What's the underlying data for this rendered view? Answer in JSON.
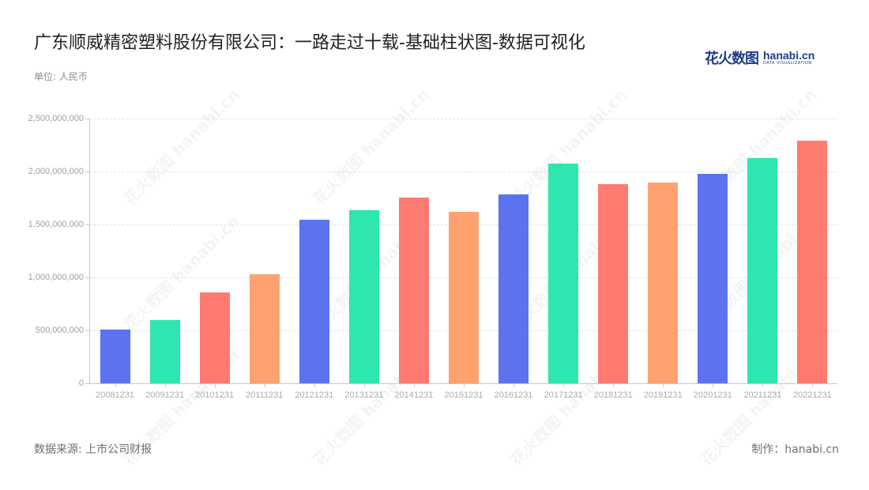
{
  "header": {
    "title": "广东顺威精密塑料股份有限公司：一路走过十载-基础柱状图-数据可视化",
    "unit": "单位: 人民币"
  },
  "logo": {
    "cn": "花火数图",
    "en": "hanabi.cn",
    "tagline": "DATA VISUALIZATION"
  },
  "footer": {
    "source": "数据来源: 上市公司财报",
    "credit": "制作：hanabi.cn"
  },
  "watermark": "花火数图 hanabi.cn",
  "colors": {
    "palette": [
      "#5b73ee",
      "#2de6b0",
      "#ff7a70",
      "#ffa26f"
    ],
    "grid": "#e2e2e2",
    "axis": "#c8c8c8"
  },
  "chart_data": {
    "type": "bar",
    "title": "广东顺威精密塑料股份有限公司：一路走过十载-基础柱状图-数据可视化",
    "xlabel": "",
    "ylabel": "单位: 人民币",
    "ylim": [
      0,
      2500000000
    ],
    "yticks": [
      "0",
      "500,000,000",
      "1,000,000,000",
      "1,500,000,000",
      "2,000,000,000",
      "2,500,000,000"
    ],
    "grid": true,
    "legend": "none",
    "categories": [
      "20081231",
      "20091231",
      "20101231",
      "20111231",
      "20121231",
      "20131231",
      "20141231",
      "20151231",
      "20161231",
      "20171231",
      "20181231",
      "20191231",
      "20201231",
      "20211231",
      "20221231"
    ],
    "values": [
      507000000,
      597000000,
      858000000,
      1030000000,
      1545000000,
      1634000000,
      1754000000,
      1619000000,
      1784000000,
      2075000000,
      1881000000,
      1896000000,
      1978000000,
      2127000000,
      2291000000
    ]
  }
}
